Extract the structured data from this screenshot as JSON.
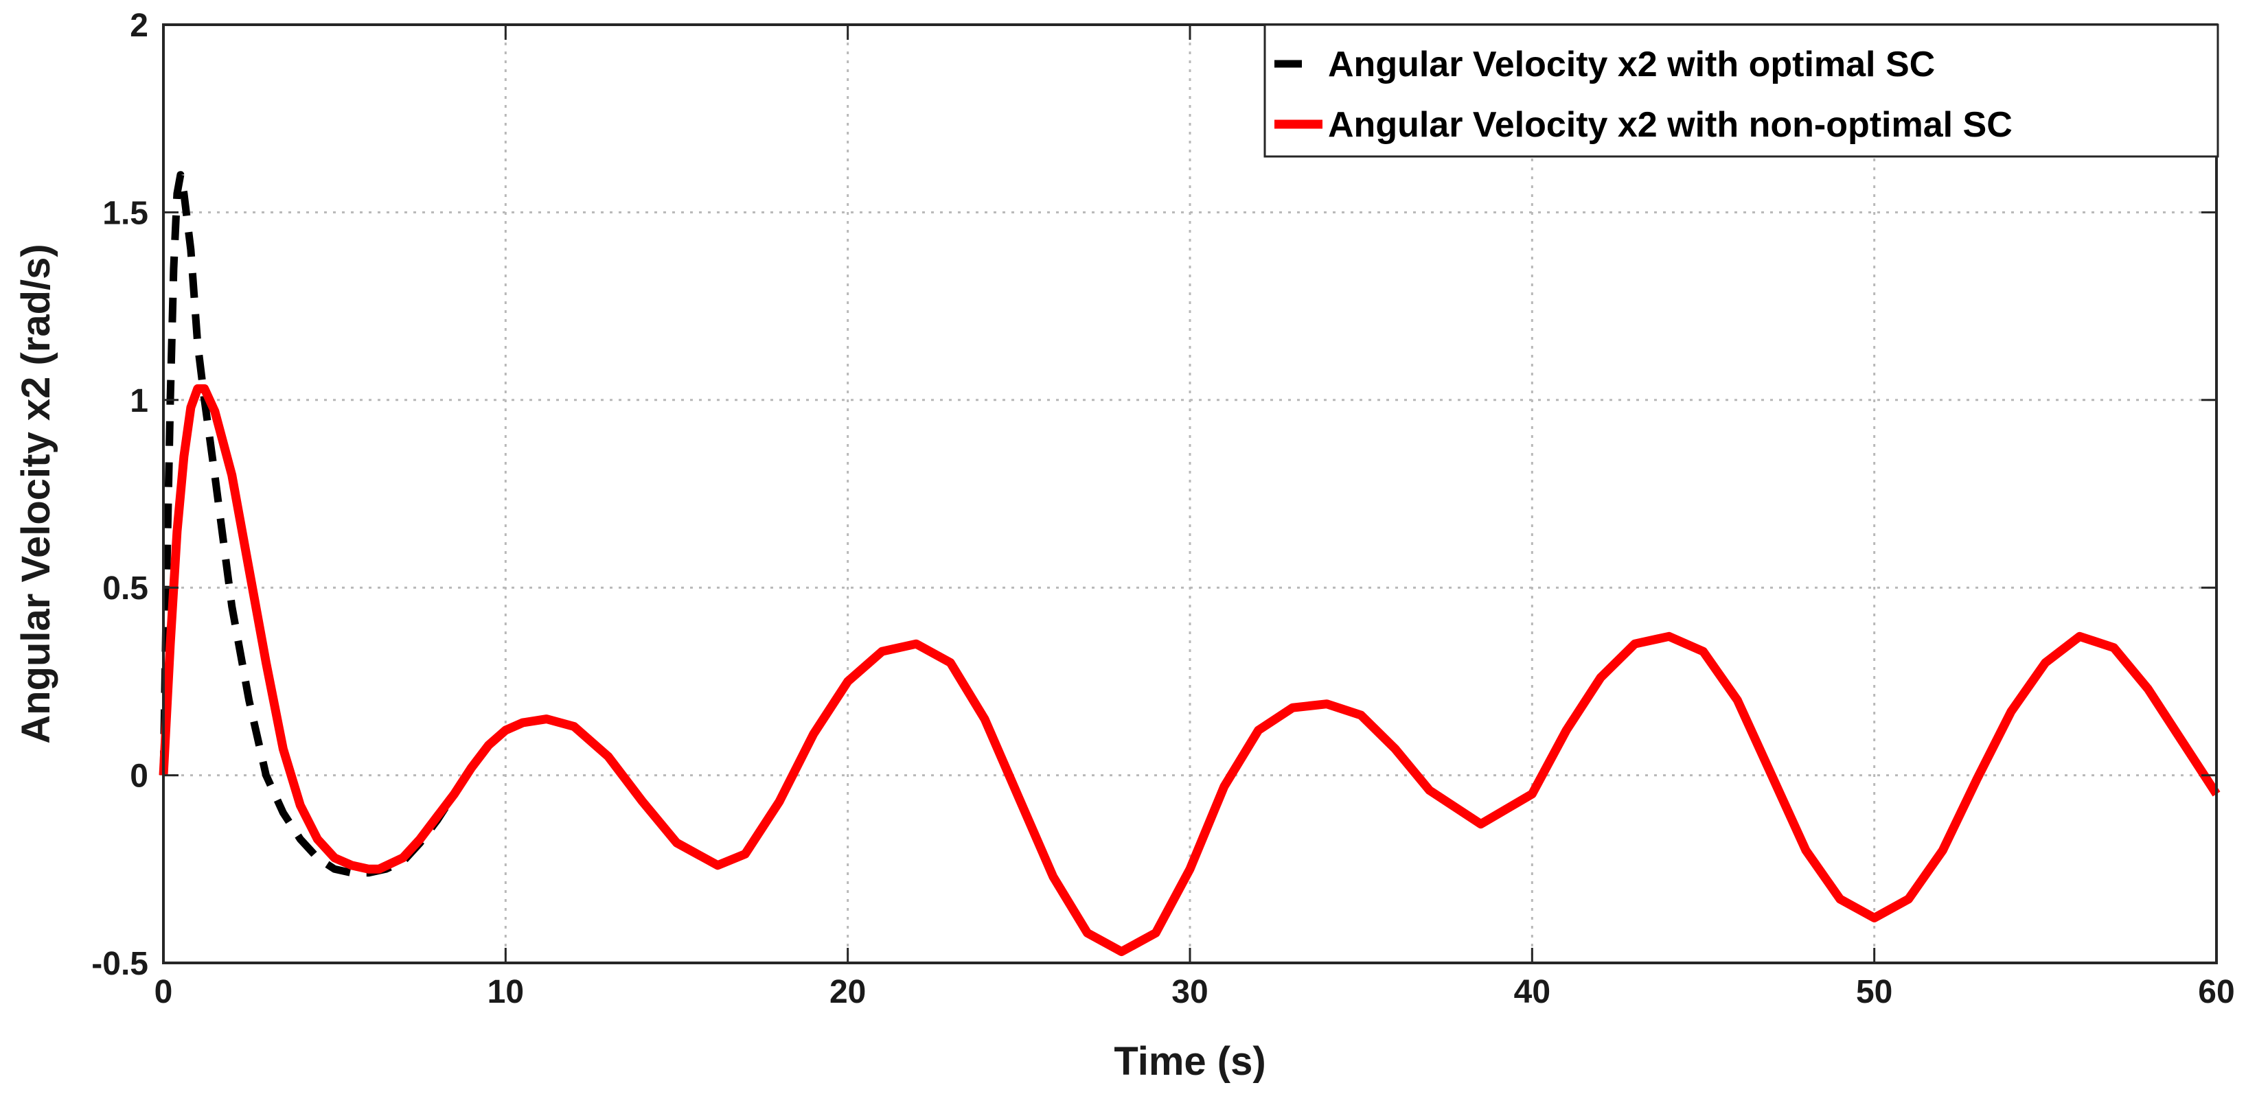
{
  "chart_data": {
    "type": "line",
    "title": "",
    "xlabel": "Time (s)",
    "ylabel": "Angular Velocity  x2  (rad/s)",
    "xlim": [
      0,
      60
    ],
    "ylim": [
      -0.5,
      2
    ],
    "xticks": [
      0,
      10,
      20,
      30,
      40,
      50,
      60
    ],
    "xtick_labels": [
      "0",
      "10",
      "20",
      "30",
      "40",
      "50",
      "60"
    ],
    "yticks": [
      -0.5,
      0,
      0.5,
      1,
      1.5,
      2
    ],
    "ytick_labels": [
      "-0.5",
      "0",
      "0.5",
      "1",
      "1.5",
      "2"
    ],
    "grid": true,
    "legend_position": "top-right",
    "series": [
      {
        "name": "Angular Velocity x2 with optimal SC",
        "color": "#000000",
        "style": "dashed",
        "x": [
          0,
          0.1,
          0.2,
          0.3,
          0.4,
          0.5,
          0.6,
          0.8,
          1.0,
          1.2,
          1.5,
          2.0,
          2.5,
          3.0,
          3.5,
          4.0,
          4.5,
          5.0,
          5.5,
          6.0,
          6.5,
          7.0,
          7.5,
          8.0,
          8.5,
          9.0
        ],
        "y": [
          0,
          0.55,
          1.0,
          1.35,
          1.55,
          1.6,
          1.55,
          1.4,
          1.15,
          1.0,
          0.8,
          0.45,
          0.2,
          0.0,
          -0.1,
          -0.17,
          -0.22,
          -0.25,
          -0.26,
          -0.26,
          -0.25,
          -0.23,
          -0.18,
          -0.12,
          -0.05,
          0.02
        ]
      },
      {
        "name": "Angular Velocity x2 with non-optimal SC",
        "color": "#ff0000",
        "style": "solid",
        "x": [
          0,
          0.2,
          0.4,
          0.6,
          0.8,
          1.0,
          1.2,
          1.5,
          2.0,
          2.5,
          3.0,
          3.5,
          4.0,
          4.5,
          5.0,
          5.5,
          6.0,
          6.3,
          7.0,
          7.5,
          8.0,
          8.5,
          9.0,
          9.5,
          10.0,
          10.5,
          11.2,
          12.0,
          13.0,
          14.0,
          15.0,
          16.2,
          17.0,
          18.0,
          19.0,
          20.0,
          21.0,
          22.0,
          23.0,
          24.0,
          25.0,
          26.0,
          27.0,
          28.0,
          29.0,
          30.0,
          31.0,
          32.0,
          33.0,
          34.0,
          35.0,
          36.0,
          37.0,
          38.5,
          40.0,
          41.0,
          42.0,
          43.0,
          44.0,
          45.0,
          46.0,
          47.0,
          48.0,
          49.0,
          50.0,
          51.0,
          52.0,
          53.0,
          54.0,
          55.0,
          56.0,
          57.0,
          58.0,
          59.0,
          60.0
        ],
        "y": [
          0,
          0.35,
          0.65,
          0.85,
          0.98,
          1.03,
          1.03,
          0.97,
          0.8,
          0.55,
          0.3,
          0.07,
          -0.08,
          -0.17,
          -0.22,
          -0.24,
          -0.25,
          -0.25,
          -0.22,
          -0.17,
          -0.11,
          -0.05,
          0.02,
          0.08,
          0.12,
          0.14,
          0.15,
          0.13,
          0.05,
          -0.07,
          -0.18,
          -0.24,
          -0.21,
          -0.07,
          0.11,
          0.25,
          0.33,
          0.35,
          0.3,
          0.15,
          -0.06,
          -0.27,
          -0.42,
          -0.47,
          -0.42,
          -0.25,
          -0.03,
          0.12,
          0.18,
          0.19,
          0.16,
          0.07,
          -0.04,
          -0.13,
          -0.05,
          0.12,
          0.26,
          0.35,
          0.37,
          0.33,
          0.2,
          0.0,
          -0.2,
          -0.33,
          -0.38,
          -0.33,
          -0.2,
          -0.01,
          0.17,
          0.3,
          0.37,
          0.34,
          0.23,
          0.09,
          -0.05
        ]
      }
    ]
  }
}
